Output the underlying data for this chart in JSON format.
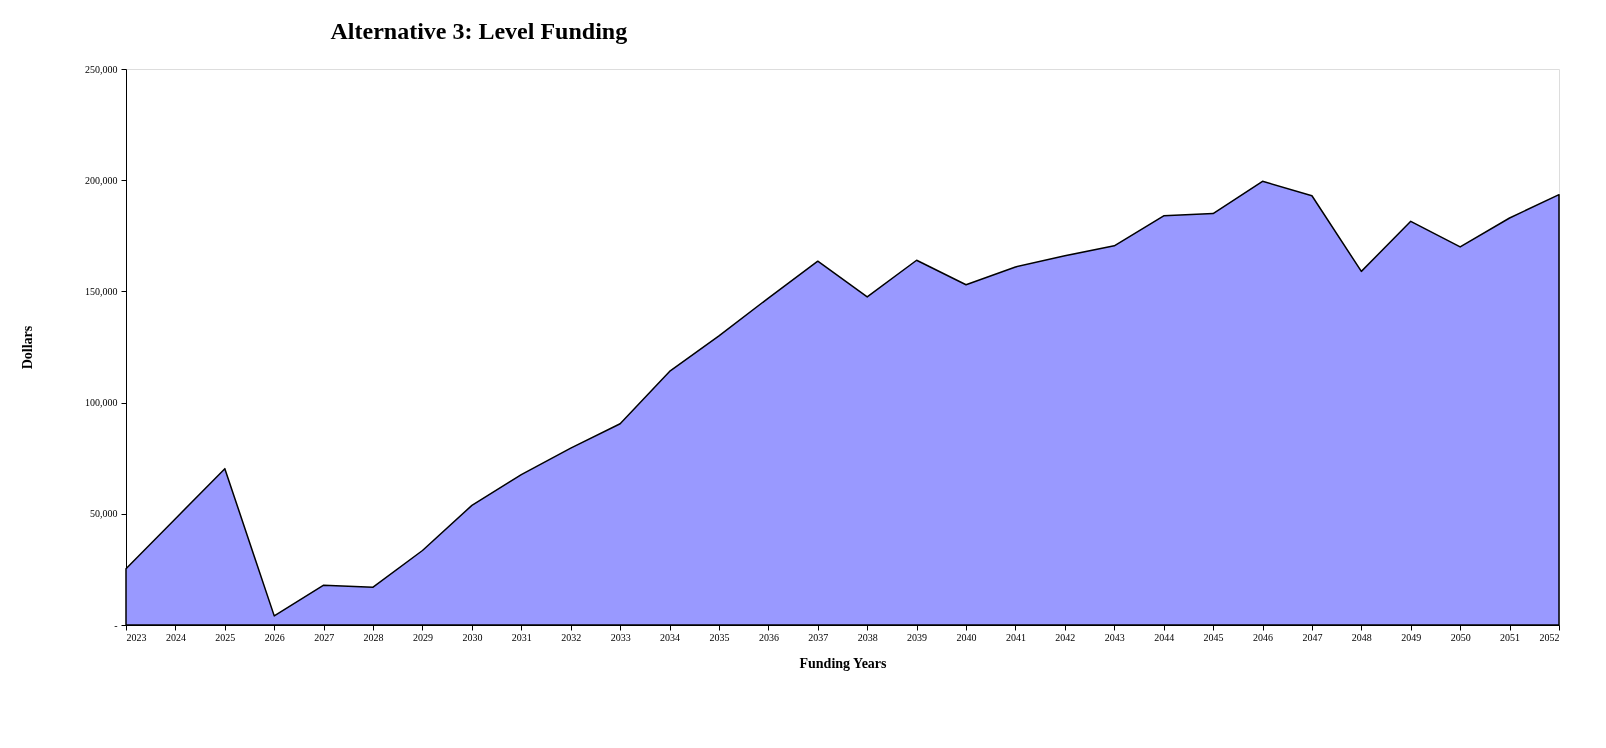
{
  "chart_data": {
    "type": "area",
    "title": "Alternative 3:  Level Funding",
    "xlabel": "Funding Years",
    "ylabel": "Dollars",
    "categories": [
      "2023",
      "2024",
      "2025",
      "2026",
      "2027",
      "2028",
      "2029",
      "2030",
      "2031",
      "2032",
      "2033",
      "2034",
      "2035",
      "2036",
      "2037",
      "2038",
      "2039",
      "2040",
      "2041",
      "2042",
      "2043",
      "2044",
      "2045",
      "2046",
      "2047",
      "2048",
      "2049",
      "2050",
      "2051",
      "2052"
    ],
    "series": [
      {
        "color": "#9999ff",
        "values": [
          25300,
          47800,
          70300,
          4100,
          17900,
          17000,
          33500,
          53800,
          67600,
          79500,
          90500,
          114000,
          130000,
          147000,
          163600,
          147500,
          164000,
          153000,
          161000,
          166000,
          170500,
          184000,
          185000,
          199500,
          193000,
          159000,
          181500,
          170000,
          183000,
          193500
        ]
      }
    ],
    "ylim": [
      0,
      250000
    ],
    "yticks": [
      {
        "value": 0,
        "label": "-"
      },
      {
        "value": 50000,
        "label": "50,000"
      },
      {
        "value": 100000,
        "label": "100,000"
      },
      {
        "value": 150000,
        "label": "150,000"
      },
      {
        "value": 200000,
        "label": "200,000"
      },
      {
        "value": 250000,
        "label": "250,000"
      }
    ],
    "grid": false
  }
}
